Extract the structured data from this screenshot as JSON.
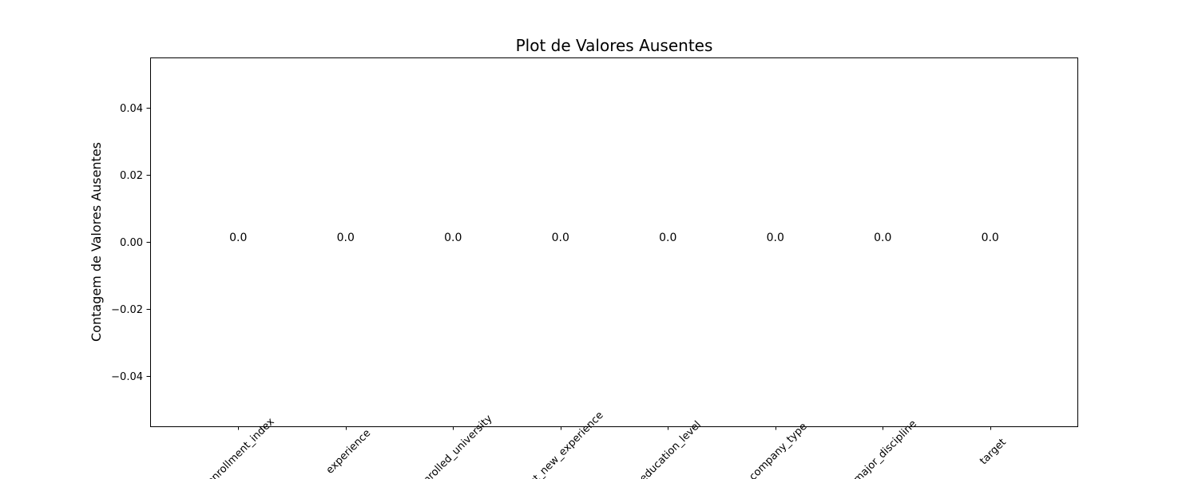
{
  "chart_data": {
    "type": "bar",
    "title": "Plot de Valores Ausentes",
    "xlabel": "",
    "ylabel": "Contagem de Valores Ausentes",
    "categories": [
      "enrollment_index",
      "experience",
      "enrolled_university",
      "last_new_experience",
      "education_level",
      "company_type",
      "major_discipline",
      "target"
    ],
    "values": [
      0,
      0,
      0,
      0,
      0,
      0,
      0,
      0
    ],
    "value_labels": [
      "0.0",
      "0.0",
      "0.0",
      "0.0",
      "0.0",
      "0.0",
      "0.0",
      "0.0"
    ],
    "ylim": [
      -0.055,
      0.055
    ],
    "yticks": [
      -0.04,
      -0.02,
      0.0,
      0.02,
      0.04
    ],
    "ytick_labels": [
      "−0.04",
      "−0.02",
      "0.00",
      "0.02",
      "0.04"
    ],
    "xtick_rotation": 45,
    "grid": false,
    "bar_color": "#1f77b4"
  }
}
